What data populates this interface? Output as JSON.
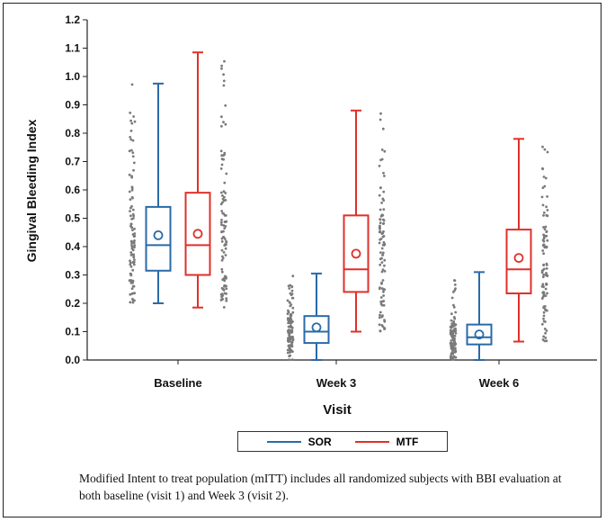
{
  "chart_data": {
    "type": "box",
    "title": "",
    "xlabel": "Visit",
    "ylabel": "Gingival Bleeding Index",
    "categories": [
      "Baseline",
      "Week 3",
      "Week 6"
    ],
    "ylim": [
      0.0,
      1.2
    ],
    "yticks": [
      "0.0",
      "0.1",
      "0.2",
      "0.3",
      "0.4",
      "0.5",
      "0.6",
      "0.7",
      "0.8",
      "0.9",
      "1.0",
      "1.1",
      "1.2"
    ],
    "grid": false,
    "legend_position": "bottom",
    "series": [
      {
        "name": "SOR",
        "color": "#2a6aa8",
        "boxes": [
          {
            "min": 0.2,
            "q1": 0.315,
            "median": 0.405,
            "q3": 0.54,
            "max": 0.975,
            "mean": 0.44
          },
          {
            "min": 0.0,
            "q1": 0.06,
            "median": 0.1,
            "q3": 0.155,
            "max": 0.305,
            "mean": 0.115
          },
          {
            "min": 0.0,
            "q1": 0.055,
            "median": 0.08,
            "q3": 0.125,
            "max": 0.31,
            "mean": 0.09
          }
        ]
      },
      {
        "name": "MTF",
        "color": "#e0302a",
        "boxes": [
          {
            "min": 0.185,
            "q1": 0.3,
            "median": 0.405,
            "q3": 0.59,
            "max": 1.085,
            "mean": 0.445
          },
          {
            "min": 0.1,
            "q1": 0.24,
            "median": 0.32,
            "q3": 0.51,
            "max": 0.88,
            "mean": 0.375
          },
          {
            "min": 0.065,
            "q1": 0.235,
            "median": 0.32,
            "q3": 0.46,
            "max": 0.78,
            "mean": 0.36
          }
        ]
      }
    ]
  },
  "legend": {
    "sor": "SOR",
    "mtf": "MTF"
  },
  "caption": "Modified Intent to treat population (mITT) includes all randomized subjects with BBI evaluation at both baseline (visit 1) and Week 3 (visit 2)."
}
